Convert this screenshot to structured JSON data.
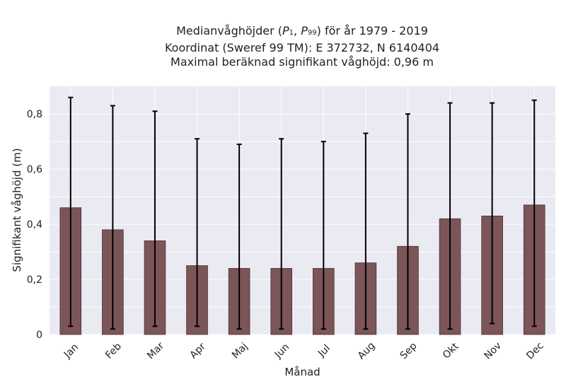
{
  "chart_data": {
    "type": "bar",
    "title_lines": [
      {
        "text": "Medianvåghöjder (",
        "p1": "P",
        "p1_sub": "1",
        "sep": ", ",
        "p2": "P",
        "p2_sub": "99",
        "rest": ") för år 1979 - 2019"
      },
      "Koordinat (Sweref 99 TM): E 372732, N 6140404",
      "Maximal beräknad signifikant våghöjd: 0,96 m"
    ],
    "xlabel": "Månad",
    "ylabel": "Signifikant våghöjd (m)",
    "categories": [
      "Jan",
      "Feb",
      "Mar",
      "Apr",
      "Maj",
      "Jun",
      "Jul",
      "Aug",
      "Sep",
      "Okt",
      "Nov",
      "Dec"
    ],
    "values": [
      0.46,
      0.38,
      0.34,
      0.25,
      0.24,
      0.24,
      0.24,
      0.26,
      0.32,
      0.42,
      0.43,
      0.47
    ],
    "p1": [
      0.03,
      0.02,
      0.03,
      0.03,
      0.02,
      0.02,
      0.02,
      0.02,
      0.02,
      0.02,
      0.04,
      0.03
    ],
    "p99": [
      0.86,
      0.83,
      0.81,
      0.71,
      0.69,
      0.71,
      0.7,
      0.73,
      0.8,
      0.84,
      0.84,
      0.85
    ],
    "yticks": [
      0,
      0.2,
      0.4,
      0.6,
      0.8
    ],
    "ytick_labels": [
      "0",
      "0,2",
      "0,4",
      "0,6",
      "0,8"
    ],
    "ylim": [
      0,
      0.903
    ],
    "grid": true,
    "colors": {
      "bar": "#7b5558",
      "bar_edge": "#4a3234",
      "plot_bg": "#eaeaf2",
      "grid": "#ffffff",
      "error": "#000000"
    }
  }
}
